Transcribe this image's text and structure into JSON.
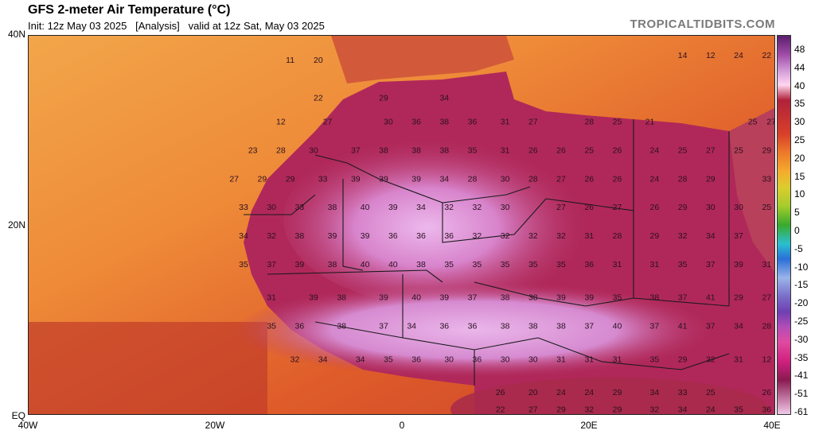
{
  "header": {
    "title": "GFS 2-meter Air Temperature (°C)",
    "subtitle": "Init: 12z May 03 2025   [Analysis]   valid at 12z Sat, May 03 2025",
    "brand": "TROPICALTIDBITS.COM"
  },
  "axes": {
    "lat_labels": [
      "40N",
      "20N",
      "EQ"
    ],
    "lon_labels": [
      "40W",
      "20W",
      "0",
      "20E",
      "40E"
    ]
  },
  "colorbar": {
    "ticks": [
      "48",
      "44",
      "40",
      "35",
      "30",
      "25",
      "20",
      "15",
      "10",
      "5",
      "0",
      "-5",
      "-10",
      "-15",
      "-20",
      "-25",
      "-30",
      "-35",
      "-41",
      "-51",
      "-61"
    ]
  },
  "colors": {
    "ocean_warm": "#d9542a",
    "ocean_cool": "#f0a046",
    "land_hot": "#b0235a",
    "land_very_hot": "#e8b0e8",
    "border": "#1a1a1a"
  },
  "map_values": [
    {
      "lat": 37.5,
      "lon": -12,
      "v": "11"
    },
    {
      "lat": 37.5,
      "lon": -9,
      "v": "20"
    },
    {
      "lat": 33.5,
      "lon": -9,
      "v": "22"
    },
    {
      "lat": 33.5,
      "lon": -2,
      "v": "29"
    },
    {
      "lat": 33.5,
      "lon": 4.5,
      "v": "34"
    },
    {
      "lat": 31,
      "lon": -13,
      "v": "12"
    },
    {
      "lat": 31,
      "lon": -8,
      "v": "27"
    },
    {
      "lat": 31,
      "lon": -1.5,
      "v": "30"
    },
    {
      "lat": 31,
      "lon": 1.5,
      "v": "36"
    },
    {
      "lat": 31,
      "lon": 4.5,
      "v": "38"
    },
    {
      "lat": 31,
      "lon": 7.5,
      "v": "36"
    },
    {
      "lat": 31,
      "lon": 11,
      "v": "31"
    },
    {
      "lat": 31,
      "lon": 14,
      "v": "27"
    },
    {
      "lat": 31,
      "lon": 20,
      "v": "28"
    },
    {
      "lat": 31,
      "lon": 23,
      "v": "25"
    },
    {
      "lat": 31,
      "lon": 26.5,
      "v": "21"
    },
    {
      "lat": 31,
      "lon": 37.5,
      "v": "25"
    },
    {
      "lat": 31,
      "lon": 39.5,
      "v": "27"
    },
    {
      "lat": 28,
      "lon": -16,
      "v": "23"
    },
    {
      "lat": 28,
      "lon": -13,
      "v": "28"
    },
    {
      "lat": 28,
      "lon": -9.5,
      "v": "30"
    },
    {
      "lat": 28,
      "lon": -5,
      "v": "37"
    },
    {
      "lat": 28,
      "lon": -2,
      "v": "38"
    },
    {
      "lat": 28,
      "lon": 1.5,
      "v": "38"
    },
    {
      "lat": 28,
      "lon": 4.5,
      "v": "38"
    },
    {
      "lat": 28,
      "lon": 7.5,
      "v": "35"
    },
    {
      "lat": 28,
      "lon": 11,
      "v": "31"
    },
    {
      "lat": 28,
      "lon": 14,
      "v": "26"
    },
    {
      "lat": 28,
      "lon": 17,
      "v": "26"
    },
    {
      "lat": 28,
      "lon": 20,
      "v": "25"
    },
    {
      "lat": 28,
      "lon": 23,
      "v": "26"
    },
    {
      "lat": 28,
      "lon": 27,
      "v": "24"
    },
    {
      "lat": 28,
      "lon": 30,
      "v": "25"
    },
    {
      "lat": 28,
      "lon": 33,
      "v": "27"
    },
    {
      "lat": 28,
      "lon": 36,
      "v": "25"
    },
    {
      "lat": 28,
      "lon": 39,
      "v": "29"
    },
    {
      "lat": 25,
      "lon": -18,
      "v": "27"
    },
    {
      "lat": 25,
      "lon": -15,
      "v": "29"
    },
    {
      "lat": 25,
      "lon": -12,
      "v": "29"
    },
    {
      "lat": 25,
      "lon": -8.5,
      "v": "33"
    },
    {
      "lat": 25,
      "lon": -5,
      "v": "39"
    },
    {
      "lat": 25,
      "lon": -2,
      "v": "39"
    },
    {
      "lat": 25,
      "lon": 1.5,
      "v": "39"
    },
    {
      "lat": 25,
      "lon": 4.5,
      "v": "34"
    },
    {
      "lat": 25,
      "lon": 7.5,
      "v": "28"
    },
    {
      "lat": 25,
      "lon": 11,
      "v": "30"
    },
    {
      "lat": 25,
      "lon": 14,
      "v": "28"
    },
    {
      "lat": 25,
      "lon": 17,
      "v": "27"
    },
    {
      "lat": 25,
      "lon": 20,
      "v": "26"
    },
    {
      "lat": 25,
      "lon": 23,
      "v": "26"
    },
    {
      "lat": 25,
      "lon": 27,
      "v": "24"
    },
    {
      "lat": 25,
      "lon": 30,
      "v": "28"
    },
    {
      "lat": 25,
      "lon": 33,
      "v": "29"
    },
    {
      "lat": 25,
      "lon": 39,
      "v": "33"
    },
    {
      "lat": 22,
      "lon": -17,
      "v": "33"
    },
    {
      "lat": 22,
      "lon": -14,
      "v": "30"
    },
    {
      "lat": 22,
      "lon": -11,
      "v": "33"
    },
    {
      "lat": 22,
      "lon": -7.5,
      "v": "38"
    },
    {
      "lat": 22,
      "lon": -4,
      "v": "40"
    },
    {
      "lat": 22,
      "lon": -1,
      "v": "39"
    },
    {
      "lat": 22,
      "lon": 2,
      "v": "34"
    },
    {
      "lat": 22,
      "lon": 5,
      "v": "32"
    },
    {
      "lat": 22,
      "lon": 8,
      "v": "32"
    },
    {
      "lat": 22,
      "lon": 11,
      "v": "30"
    },
    {
      "lat": 22,
      "lon": 17,
      "v": "27"
    },
    {
      "lat": 22,
      "lon": 20,
      "v": "26"
    },
    {
      "lat": 22,
      "lon": 23,
      "v": "27"
    },
    {
      "lat": 22,
      "lon": 27,
      "v": "26"
    },
    {
      "lat": 22,
      "lon": 30,
      "v": "29"
    },
    {
      "lat": 22,
      "lon": 33,
      "v": "30"
    },
    {
      "lat": 22,
      "lon": 36,
      "v": "30"
    },
    {
      "lat": 22,
      "lon": 39,
      "v": "25"
    },
    {
      "lat": 19,
      "lon": -17,
      "v": "34"
    },
    {
      "lat": 19,
      "lon": -14,
      "v": "32"
    },
    {
      "lat": 19,
      "lon": -11,
      "v": "38"
    },
    {
      "lat": 19,
      "lon": -7.5,
      "v": "39"
    },
    {
      "lat": 19,
      "lon": -4,
      "v": "39"
    },
    {
      "lat": 19,
      "lon": -1,
      "v": "36"
    },
    {
      "lat": 19,
      "lon": 2,
      "v": "36"
    },
    {
      "lat": 19,
      "lon": 5,
      "v": "36"
    },
    {
      "lat": 19,
      "lon": 8,
      "v": "32"
    },
    {
      "lat": 19,
      "lon": 11,
      "v": "32"
    },
    {
      "lat": 19,
      "lon": 14,
      "v": "32"
    },
    {
      "lat": 19,
      "lon": 17,
      "v": "32"
    },
    {
      "lat": 19,
      "lon": 20,
      "v": "31"
    },
    {
      "lat": 19,
      "lon": 23,
      "v": "28"
    },
    {
      "lat": 19,
      "lon": 27,
      "v": "29"
    },
    {
      "lat": 19,
      "lon": 30,
      "v": "32"
    },
    {
      "lat": 19,
      "lon": 33,
      "v": "34"
    },
    {
      "lat": 19,
      "lon": 36,
      "v": "37"
    },
    {
      "lat": 16,
      "lon": -17,
      "v": "35"
    },
    {
      "lat": 16,
      "lon": -14,
      "v": "37"
    },
    {
      "lat": 16,
      "lon": -11,
      "v": "39"
    },
    {
      "lat": 16,
      "lon": -7.5,
      "v": "38"
    },
    {
      "lat": 16,
      "lon": -4,
      "v": "40"
    },
    {
      "lat": 16,
      "lon": -1,
      "v": "40"
    },
    {
      "lat": 16,
      "lon": 2,
      "v": "38"
    },
    {
      "lat": 16,
      "lon": 5,
      "v": "35"
    },
    {
      "lat": 16,
      "lon": 8,
      "v": "35"
    },
    {
      "lat": 16,
      "lon": 11,
      "v": "35"
    },
    {
      "lat": 16,
      "lon": 14,
      "v": "35"
    },
    {
      "lat": 16,
      "lon": 17,
      "v": "35"
    },
    {
      "lat": 16,
      "lon": 20,
      "v": "36"
    },
    {
      "lat": 16,
      "lon": 23,
      "v": "31"
    },
    {
      "lat": 16,
      "lon": 27,
      "v": "31"
    },
    {
      "lat": 16,
      "lon": 30,
      "v": "35"
    },
    {
      "lat": 16,
      "lon": 33,
      "v": "37"
    },
    {
      "lat": 16,
      "lon": 36,
      "v": "39"
    },
    {
      "lat": 16,
      "lon": 39,
      "v": "31"
    },
    {
      "lat": 12.5,
      "lon": -14,
      "v": "31"
    },
    {
      "lat": 12.5,
      "lon": -9.5,
      "v": "39"
    },
    {
      "lat": 12.5,
      "lon": -6.5,
      "v": "38"
    },
    {
      "lat": 12.5,
      "lon": -2,
      "v": "39"
    },
    {
      "lat": 12.5,
      "lon": 1.5,
      "v": "40"
    },
    {
      "lat": 12.5,
      "lon": 4.5,
      "v": "39"
    },
    {
      "lat": 12.5,
      "lon": 7.5,
      "v": "37"
    },
    {
      "lat": 12.5,
      "lon": 11,
      "v": "38"
    },
    {
      "lat": 12.5,
      "lon": 14,
      "v": "38"
    },
    {
      "lat": 12.5,
      "lon": 17,
      "v": "39"
    },
    {
      "lat": 12.5,
      "lon": 20,
      "v": "39"
    },
    {
      "lat": 12.5,
      "lon": 23,
      "v": "35"
    },
    {
      "lat": 12.5,
      "lon": 27,
      "v": "38"
    },
    {
      "lat": 12.5,
      "lon": 30,
      "v": "37"
    },
    {
      "lat": 12.5,
      "lon": 33,
      "v": "41"
    },
    {
      "lat": 12.5,
      "lon": 36,
      "v": "29"
    },
    {
      "lat": 12.5,
      "lon": 39,
      "v": "27"
    },
    {
      "lat": 9.5,
      "lon": -14,
      "v": "35"
    },
    {
      "lat": 9.5,
      "lon": -11,
      "v": "36"
    },
    {
      "lat": 9.5,
      "lon": -6.5,
      "v": "38"
    },
    {
      "lat": 9.5,
      "lon": -2,
      "v": "37"
    },
    {
      "lat": 9.5,
      "lon": 1,
      "v": "34"
    },
    {
      "lat": 9.5,
      "lon": 4.5,
      "v": "36"
    },
    {
      "lat": 9.5,
      "lon": 7.5,
      "v": "36"
    },
    {
      "lat": 9.5,
      "lon": 11,
      "v": "38"
    },
    {
      "lat": 9.5,
      "lon": 14,
      "v": "38"
    },
    {
      "lat": 9.5,
      "lon": 17,
      "v": "38"
    },
    {
      "lat": 9.5,
      "lon": 20,
      "v": "37"
    },
    {
      "lat": 9.5,
      "lon": 23,
      "v": "40"
    },
    {
      "lat": 9.5,
      "lon": 27,
      "v": "37"
    },
    {
      "lat": 9.5,
      "lon": 30,
      "v": "41"
    },
    {
      "lat": 9.5,
      "lon": 33,
      "v": "37"
    },
    {
      "lat": 9.5,
      "lon": 36,
      "v": "34"
    },
    {
      "lat": 9.5,
      "lon": 39,
      "v": "28"
    },
    {
      "lat": 6,
      "lon": -11.5,
      "v": "32"
    },
    {
      "lat": 6,
      "lon": -8.5,
      "v": "34"
    },
    {
      "lat": 6,
      "lon": -4.5,
      "v": "34"
    },
    {
      "lat": 6,
      "lon": -1.5,
      "v": "35"
    },
    {
      "lat": 6,
      "lon": 1.5,
      "v": "36"
    },
    {
      "lat": 6,
      "lon": 5,
      "v": "30"
    },
    {
      "lat": 6,
      "lon": 8,
      "v": "36"
    },
    {
      "lat": 6,
      "lon": 11,
      "v": "30"
    },
    {
      "lat": 6,
      "lon": 14,
      "v": "30"
    },
    {
      "lat": 6,
      "lon": 17,
      "v": "31"
    },
    {
      "lat": 6,
      "lon": 20,
      "v": "31"
    },
    {
      "lat": 6,
      "lon": 23,
      "v": "31"
    },
    {
      "lat": 6,
      "lon": 27,
      "v": "35"
    },
    {
      "lat": 6,
      "lon": 30,
      "v": "29"
    },
    {
      "lat": 6,
      "lon": 33,
      "v": "32"
    },
    {
      "lat": 6,
      "lon": 36,
      "v": "31"
    },
    {
      "lat": 6,
      "lon": 39,
      "v": "12"
    },
    {
      "lat": 2.5,
      "lon": 10.5,
      "v": "26"
    },
    {
      "lat": 2.5,
      "lon": 14,
      "v": "20"
    },
    {
      "lat": 2.5,
      "lon": 17,
      "v": "24"
    },
    {
      "lat": 2.5,
      "lon": 20,
      "v": "24"
    },
    {
      "lat": 2.5,
      "lon": 23,
      "v": "29"
    },
    {
      "lat": 2.5,
      "lon": 27,
      "v": "34"
    },
    {
      "lat": 2.5,
      "lon": 30,
      "v": "33"
    },
    {
      "lat": 2.5,
      "lon": 33,
      "v": "25"
    },
    {
      "lat": 2.5,
      "lon": 39,
      "v": "26"
    },
    {
      "lat": 0.7,
      "lon": 10.5,
      "v": "22"
    },
    {
      "lat": 0.7,
      "lon": 14,
      "v": "27"
    },
    {
      "lat": 0.7,
      "lon": 17,
      "v": "29"
    },
    {
      "lat": 0.7,
      "lon": 20,
      "v": "32"
    },
    {
      "lat": 0.7,
      "lon": 23,
      "v": "29"
    },
    {
      "lat": 0.7,
      "lon": 27,
      "v": "32"
    },
    {
      "lat": 0.7,
      "lon": 30,
      "v": "34"
    },
    {
      "lat": 0.7,
      "lon": 33,
      "v": "24"
    },
    {
      "lat": 0.7,
      "lon": 36,
      "v": "35"
    },
    {
      "lat": 0.7,
      "lon": 39,
      "v": "36"
    },
    {
      "lat": 38,
      "lon": 30,
      "v": "14"
    },
    {
      "lat": 38,
      "lon": 33,
      "v": "12"
    },
    {
      "lat": 38,
      "lon": 36,
      "v": "24"
    },
    {
      "lat": 38,
      "lon": 39,
      "v": "22"
    }
  ]
}
